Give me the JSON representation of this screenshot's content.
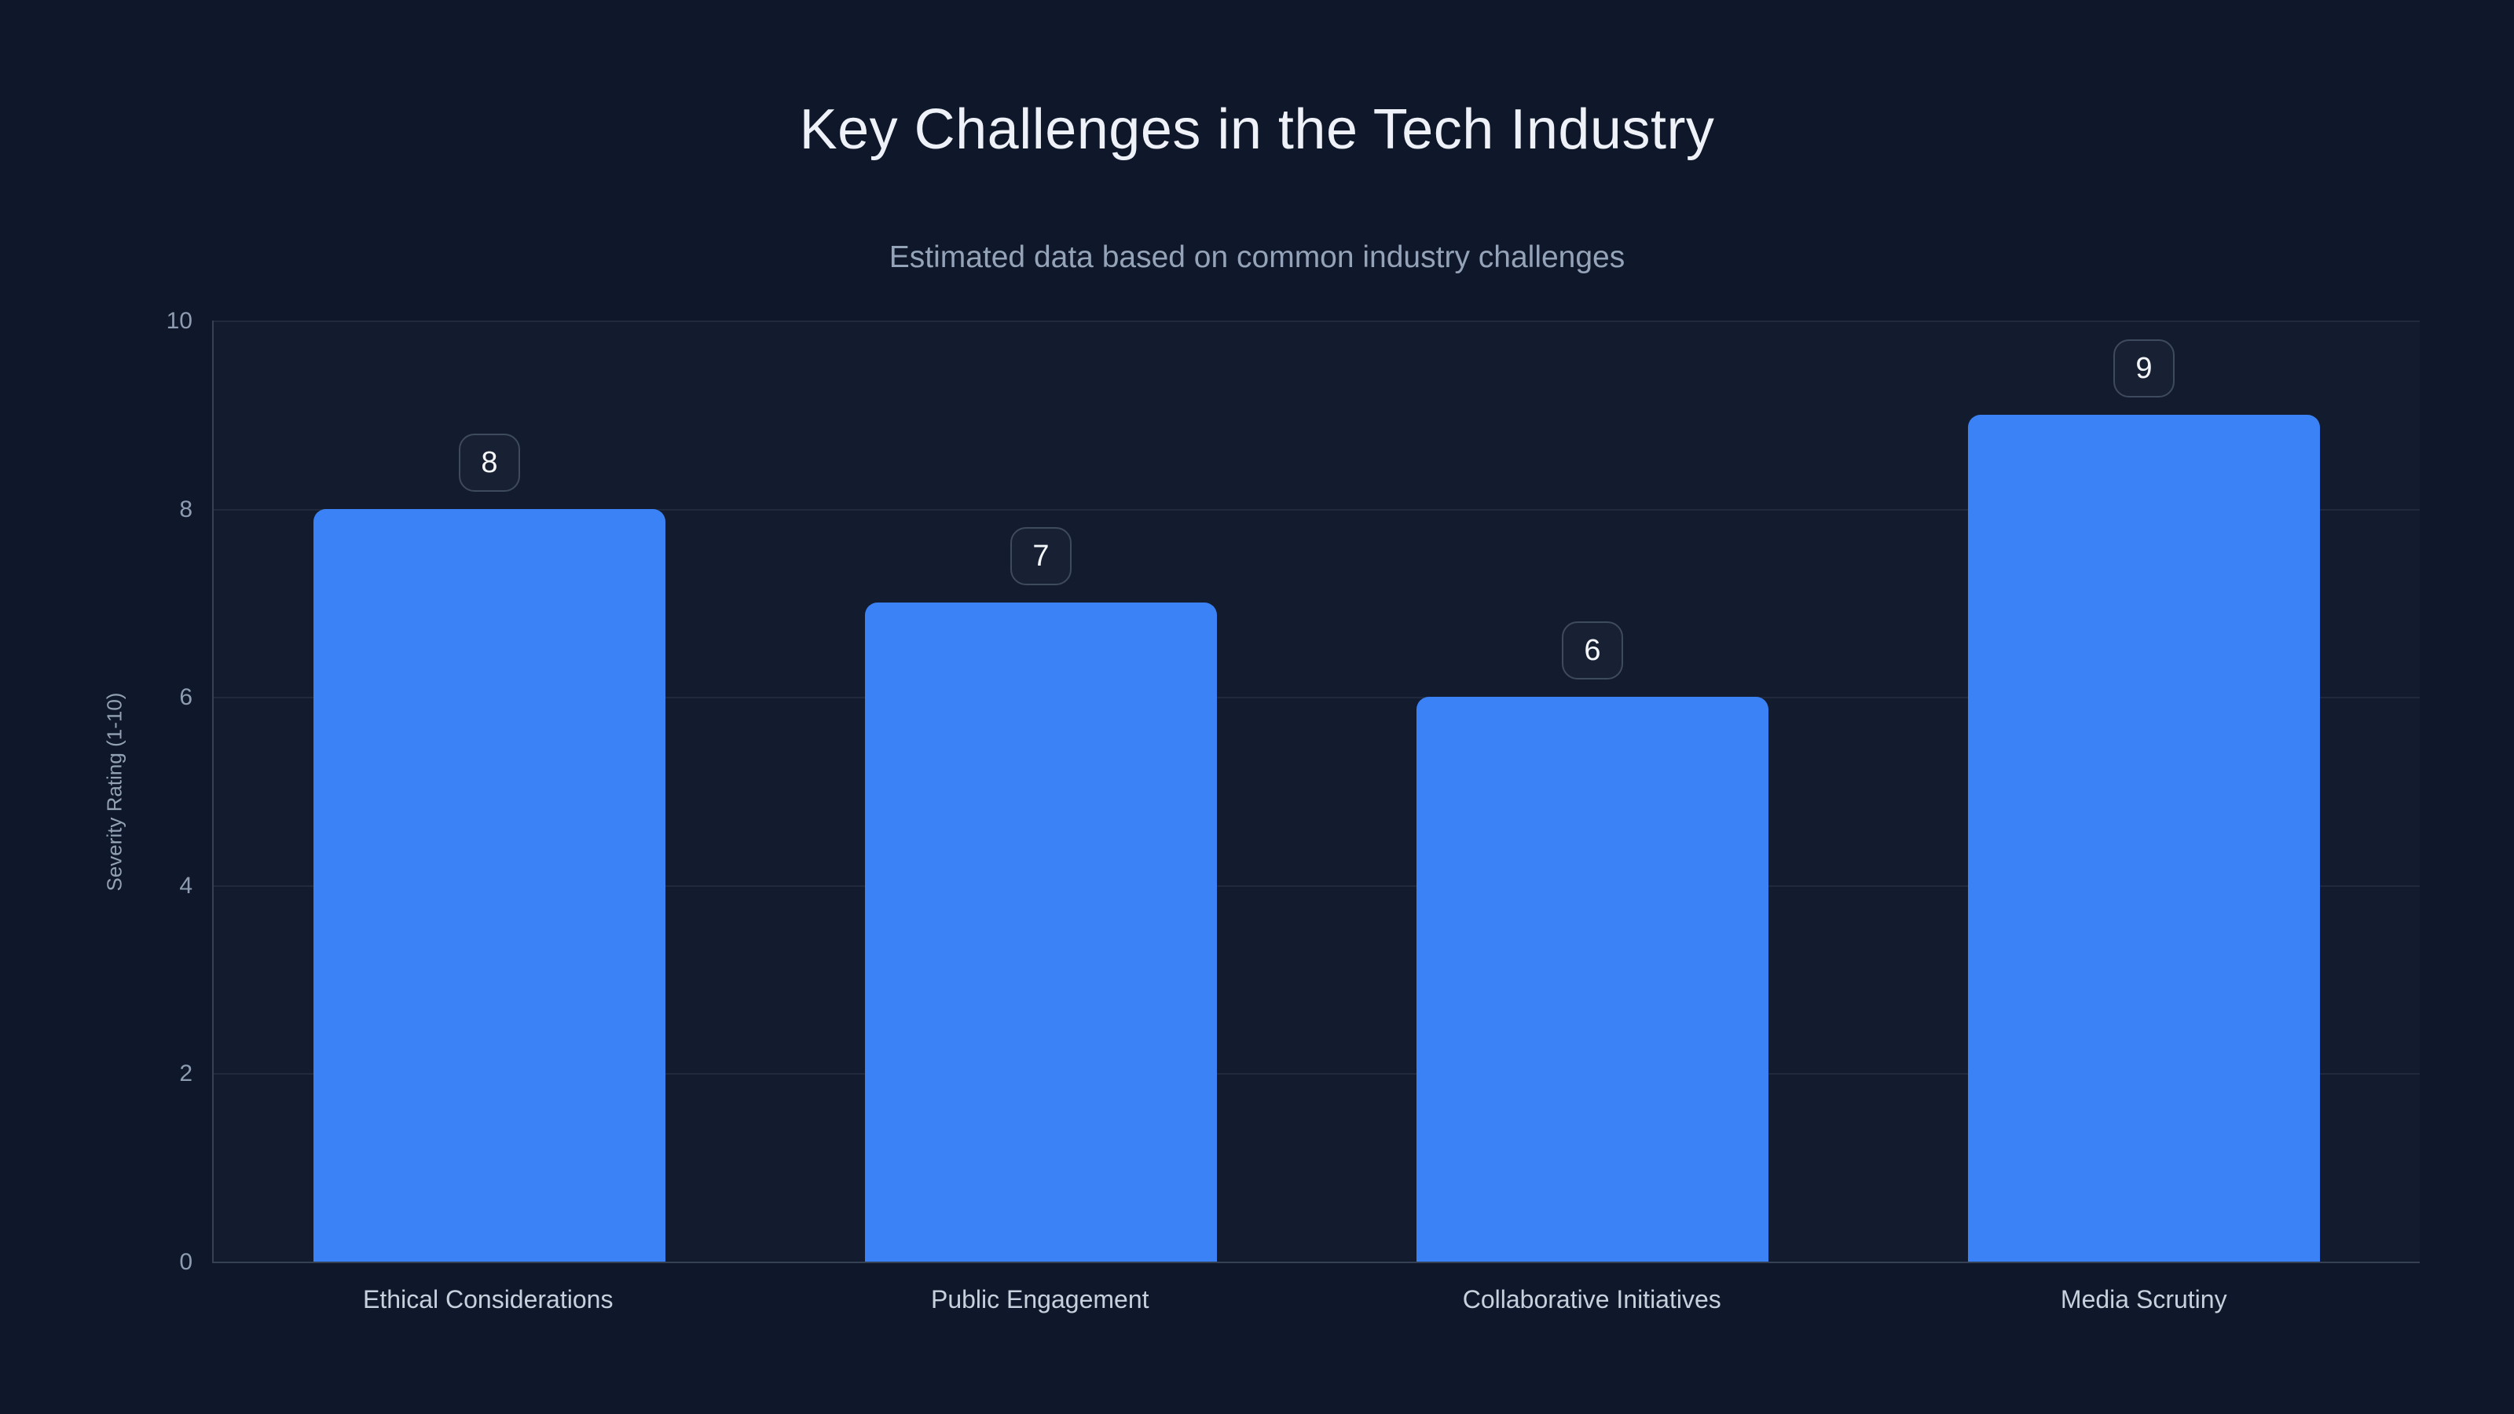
{
  "chart_data": {
    "type": "bar",
    "title": "Key Challenges in the Tech Industry",
    "subtitle": "Estimated data based on common industry challenges",
    "categories": [
      "Ethical Considerations",
      "Public Engagement",
      "Collaborative Initiatives",
      "Media Scrutiny"
    ],
    "values": [
      8,
      7,
      6,
      9
    ],
    "xlabel": "",
    "ylabel": "Severity Rating (1-10)",
    "ylim": [
      0,
      10
    ],
    "yticks": [
      "10",
      "8",
      "6",
      "4",
      "2",
      "0"
    ],
    "grid": "horizontal",
    "legend": false,
    "legend_position": "none",
    "bar_corner_radius_px": 16,
    "colors": {
      "bar": "#3b82f6",
      "background": "#0f172a",
      "title_text": "#eef2f8",
      "subtitle_text": "#94a3b8",
      "tick_text": "#8e9cb2",
      "category_text": "#c7d1dd",
      "value_badge_border": "#3e4a5e",
      "value_badge_text": "#f5f8fb",
      "gridline": "rgba(148,163,184,0.10)",
      "axis_line": "rgba(148,163,184,0.28)"
    }
  }
}
